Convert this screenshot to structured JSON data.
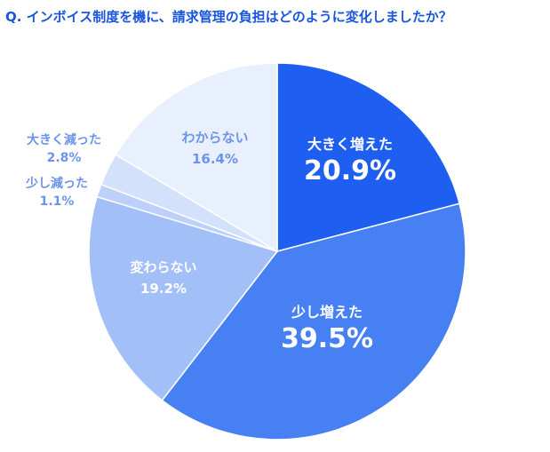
{
  "title": "Q. インボイス制度を機に、請求管理の負担はどのように変化しましたか？",
  "chart_data": {
    "type": "pie",
    "title": "Q. インボイス制度を機に、請求管理の負担はどのように変化しましたか？",
    "slices": [
      {
        "label": "大きく増えた",
        "value": 20.9,
        "display": "20.9%",
        "color": "#1e5ef0",
        "text_color": "#ffffff"
      },
      {
        "label": "少し増えた",
        "value": 39.5,
        "display": "39.5%",
        "color": "#4780f3",
        "text_color": "#ffffff"
      },
      {
        "label": "変わらない",
        "value": 19.2,
        "display": "19.2%",
        "color": "#a3bff8",
        "text_color": "#ffffff"
      },
      {
        "label": "少し減った",
        "value": 1.1,
        "display": "1.1%",
        "color": "#bcd0f9",
        "text_color": "#6d94e8"
      },
      {
        "label": "大きく減った",
        "value": 2.8,
        "display": "2.8%",
        "color": "#d4e1fb",
        "text_color": "#6d94e8"
      },
      {
        "label": "わからない",
        "value": 16.4,
        "display": "16.4%",
        "color": "#e9f0fd",
        "text_color": "#6d94e8"
      }
    ]
  }
}
